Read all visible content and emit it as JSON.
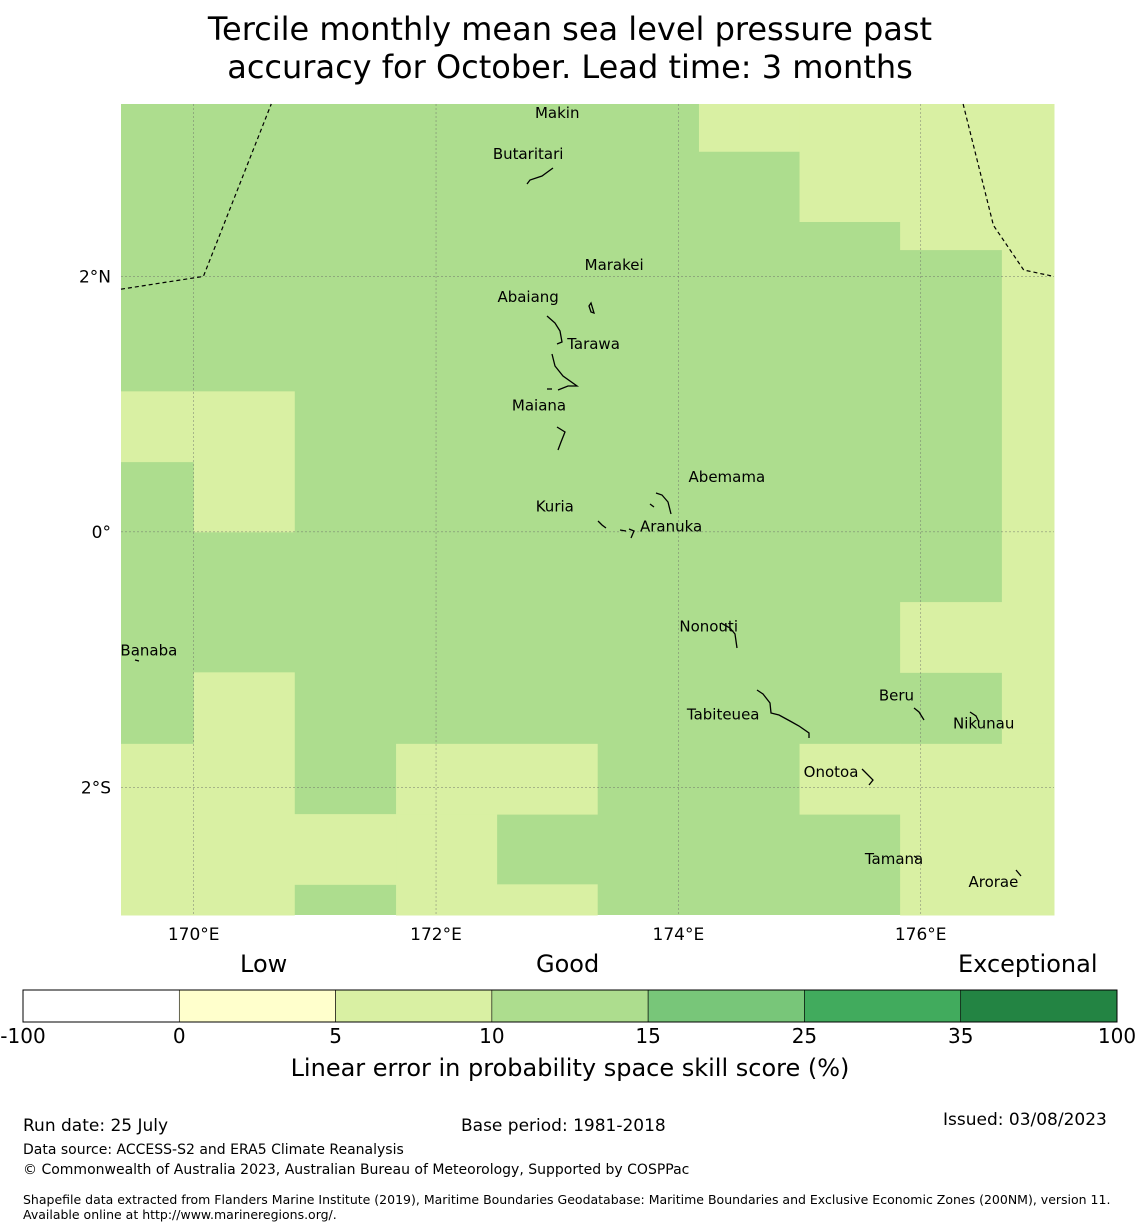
{
  "title": {
    "line1": "Tercile monthly mean sea level pressure past",
    "line2": "accuracy for October. Lead time: 3 months"
  },
  "map": {
    "lon_range": [
      169.4,
      177.1
    ],
    "lat_range": [
      -3.0,
      3.35
    ],
    "x_ticks": [
      {
        "value": 170,
        "label": "170°E"
      },
      {
        "value": 172,
        "label": "172°E"
      },
      {
        "value": 174,
        "label": "174°E"
      },
      {
        "value": 176,
        "label": "176°E"
      }
    ],
    "y_ticks": [
      {
        "value": 2,
        "label": "2°N"
      },
      {
        "value": 0,
        "label": "0°"
      },
      {
        "value": -2,
        "label": "2°S"
      }
    ],
    "grid_lines": true,
    "default_class": "10-15",
    "light_cells_5_10": [
      {
        "lon": [
          174.17,
          175.0
        ],
        "lat": [
          2.98,
          3.35
        ]
      },
      {
        "lon": [
          175.0,
          175.83
        ],
        "lat": [
          2.43,
          3.35
        ]
      },
      {
        "lon": [
          175.83,
          176.67
        ],
        "lat": [
          2.21,
          3.35
        ]
      },
      {
        "lon": [
          176.67,
          177.1
        ],
        "lat": [
          -0.55,
          3.35
        ]
      },
      {
        "lon": [
          169.4,
          170.0
        ],
        "lat": [
          0.55,
          1.1
        ]
      },
      {
        "lon": [
          170.0,
          170.83
        ],
        "lat": [
          0.0,
          1.1
        ]
      },
      {
        "lon": [
          175.83,
          176.67
        ],
        "lat": [
          -1.1,
          -0.55
        ]
      },
      {
        "lon": [
          176.67,
          177.1
        ],
        "lat": [
          -3.0,
          -0.55
        ]
      },
      {
        "lon": [
          169.4,
          170.0
        ],
        "lat": [
          -3.0,
          -1.66
        ]
      },
      {
        "lon": [
          170.0,
          170.83
        ],
        "lat": [
          -3.0,
          -1.1
        ]
      },
      {
        "lon": [
          170.83,
          171.67
        ],
        "lat": [
          -2.76,
          -2.21
        ]
      },
      {
        "lon": [
          171.67,
          173.33
        ],
        "lat": [
          -2.21,
          -1.66
        ]
      },
      {
        "lon": [
          171.67,
          172.5
        ],
        "lat": [
          -3.0,
          -2.21
        ]
      },
      {
        "lon": [
          172.5,
          173.33
        ],
        "lat": [
          -3.0,
          -2.76
        ]
      },
      {
        "lon": [
          175.0,
          175.83
        ],
        "lat": [
          -2.21,
          -1.66
        ]
      },
      {
        "lon": [
          175.83,
          177.1
        ],
        "lat": [
          -3.0,
          -1.66
        ]
      }
    ],
    "boundaries": [
      [
        [
          169.4,
          1.9
        ],
        [
          170.08,
          2.0
        ],
        [
          170.64,
          3.35
        ]
      ],
      [
        [
          176.35,
          3.35
        ],
        [
          176.6,
          2.4
        ],
        [
          176.85,
          2.05
        ],
        [
          177.1,
          2.0
        ]
      ]
    ],
    "places": [
      {
        "name": "Makin",
        "lon": 173.0,
        "lat": 3.28
      },
      {
        "name": "Butaritari",
        "lon": 172.76,
        "lat": 2.96
      },
      {
        "name": "Marakei",
        "lon": 173.47,
        "lat": 2.09
      },
      {
        "name": "Abaiang",
        "lon": 172.76,
        "lat": 1.84
      },
      {
        "name": "Tarawa",
        "lon": 173.3,
        "lat": 1.47
      },
      {
        "name": "Maiana",
        "lon": 172.85,
        "lat": 0.99
      },
      {
        "name": "Abemama",
        "lon": 174.4,
        "lat": 0.43
      },
      {
        "name": "Kuria",
        "lon": 172.98,
        "lat": 0.2
      },
      {
        "name": "Aranuka",
        "lon": 173.94,
        "lat": 0.04
      },
      {
        "name": "Nonouti",
        "lon": 174.25,
        "lat": -0.74
      },
      {
        "name": "Banaba",
        "lon": 169.63,
        "lat": -0.93
      },
      {
        "name": "Beru",
        "lon": 175.8,
        "lat": -1.28
      },
      {
        "name": "Tabiteuea",
        "lon": 174.37,
        "lat": -1.43
      },
      {
        "name": "Nikunau",
        "lon": 176.52,
        "lat": -1.5
      },
      {
        "name": "Onotoa",
        "lon": 175.26,
        "lat": -1.88
      },
      {
        "name": "Tamana",
        "lon": 175.78,
        "lat": -2.56
      },
      {
        "name": "Arorae",
        "lon": 176.6,
        "lat": -2.74
      }
    ]
  },
  "colorbar": {
    "categories": [
      {
        "label": "Low"
      },
      {
        "label": "Good"
      },
      {
        "label": "Exceptional"
      }
    ],
    "bins": [
      {
        "from": "-100",
        "to": "0",
        "color": "#ffffff"
      },
      {
        "from": "0",
        "to": "5",
        "color": "#ffffcc"
      },
      {
        "from": "5",
        "to": "10",
        "color": "#d9f0a3"
      },
      {
        "from": "10",
        "to": "15",
        "color": "#addd8e"
      },
      {
        "from": "15",
        "to": "25",
        "color": "#78c679"
      },
      {
        "from": "25",
        "to": "35",
        "color": "#41ab5d"
      },
      {
        "from": "35",
        "to": "100",
        "color": "#238443"
      }
    ],
    "tick_labels": [
      "-100",
      "0",
      "5",
      "10",
      "15",
      "25",
      "35",
      "100"
    ],
    "label": "Linear error in probability space skill score (%)"
  },
  "footer": {
    "run_date": "Run date: 25 July",
    "base_period": "Base period: 1981-2018",
    "issued": "Issued: 03/08/2023",
    "data_source": "Data source: ACCESS-S2 and ERA5 Climate Reanalysis",
    "copyright": "© Commonwealth of Australia 2023, Australian Bureau of Meteorology, Supported by COSPPac",
    "shapefile": "Shapefile data extracted from Flanders Marine Institute (2019), Maritime Boundaries Geodatabase: Maritime Boundaries and Exclusive Economic Zones (200NM), version 11. Available online at http://www.marineregions.org/."
  }
}
